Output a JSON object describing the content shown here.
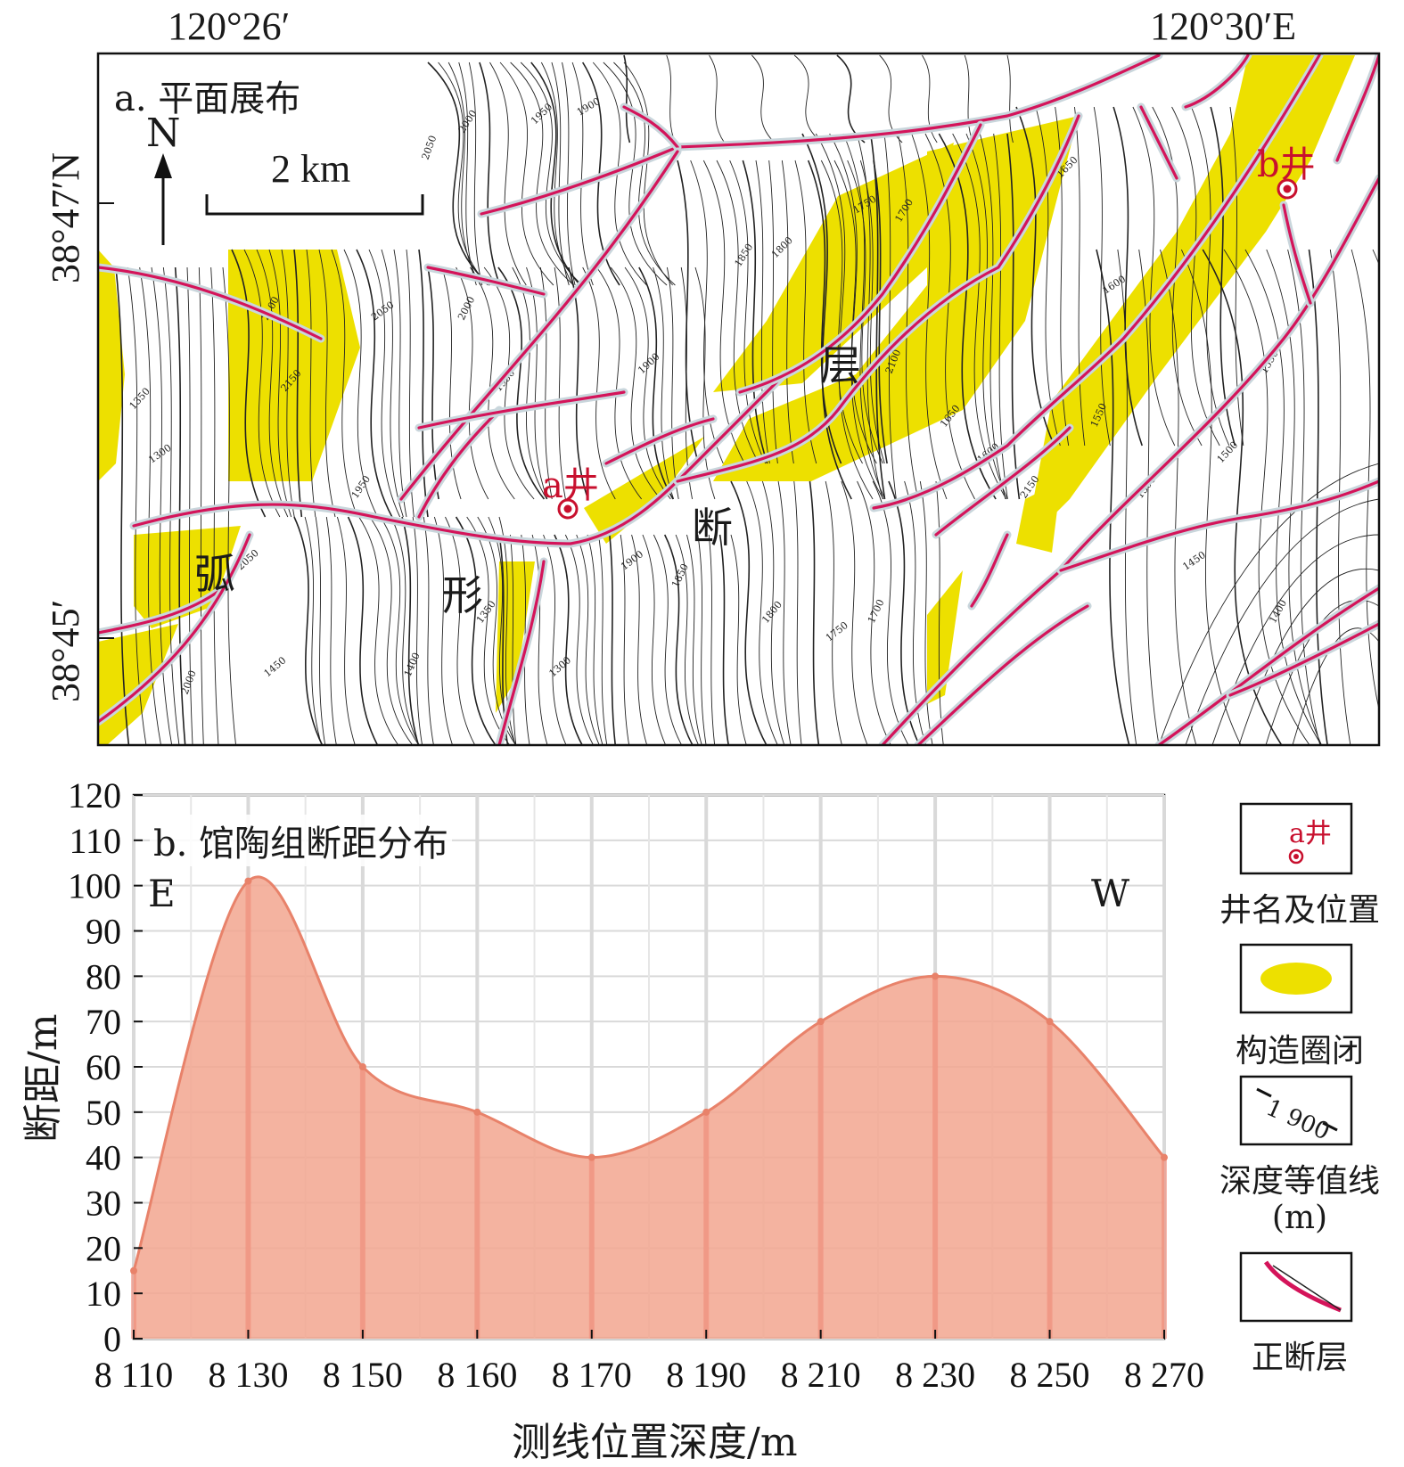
{
  "map": {
    "coords": {
      "top_left": "120°26′",
      "top_right": "120°30′E",
      "left_upper": "38°47′N",
      "left_lower": "38°45′"
    },
    "panel_title": "a. 平面展布",
    "north_label": "N",
    "scale_label": "2 km",
    "wells": [
      {
        "label": "a井",
        "color": "#c8102e"
      },
      {
        "label": "b井",
        "color": "#c8102e"
      }
    ],
    "fault_name_chars": [
      "弧",
      "形",
      "断",
      "层"
    ],
    "contour_labels": [
      "2050",
      "2000",
      "1950",
      "1900",
      "1850",
      "1800",
      "1750",
      "1700",
      "1650",
      "1600",
      "1550",
      "1500",
      "1450",
      "1400",
      "1350",
      "1300",
      "2100",
      "2150"
    ],
    "colors": {
      "closure": "#ede000",
      "fault": "#d4145a",
      "fault_halo": "#c9d6dc",
      "contour": "#222222"
    }
  },
  "chart_data": {
    "type": "area",
    "title": "b. 馆陶组断距分布",
    "xlabel": "测线位置深度/m",
    "ylabel": "断距/m",
    "direction_left": "E",
    "direction_right": "W",
    "categories": [
      "8 110",
      "8 130",
      "8 150",
      "8 160",
      "8 170",
      "8 190",
      "8 210",
      "8 230",
      "8 250",
      "8 270"
    ],
    "values": [
      15,
      101,
      60,
      50,
      40,
      50,
      70,
      80,
      70,
      40
    ],
    "ylim": [
      0,
      120
    ],
    "yticks": [
      0,
      10,
      20,
      30,
      40,
      50,
      60,
      70,
      80,
      90,
      100,
      110,
      120
    ],
    "grid": true,
    "fill_color": "#f2a68f",
    "line_color": "#e8826a"
  },
  "legend": {
    "items": [
      {
        "icon": "well-icon",
        "sample": "a井",
        "label": "井名及位置"
      },
      {
        "icon": "closure-icon",
        "label": "构造圈闭"
      },
      {
        "icon": "contour-icon",
        "sample": "1 900",
        "label": "深度等值线"
      },
      {
        "icon": "fault-icon",
        "label": "正断层"
      }
    ],
    "unit_note": "(m)"
  }
}
